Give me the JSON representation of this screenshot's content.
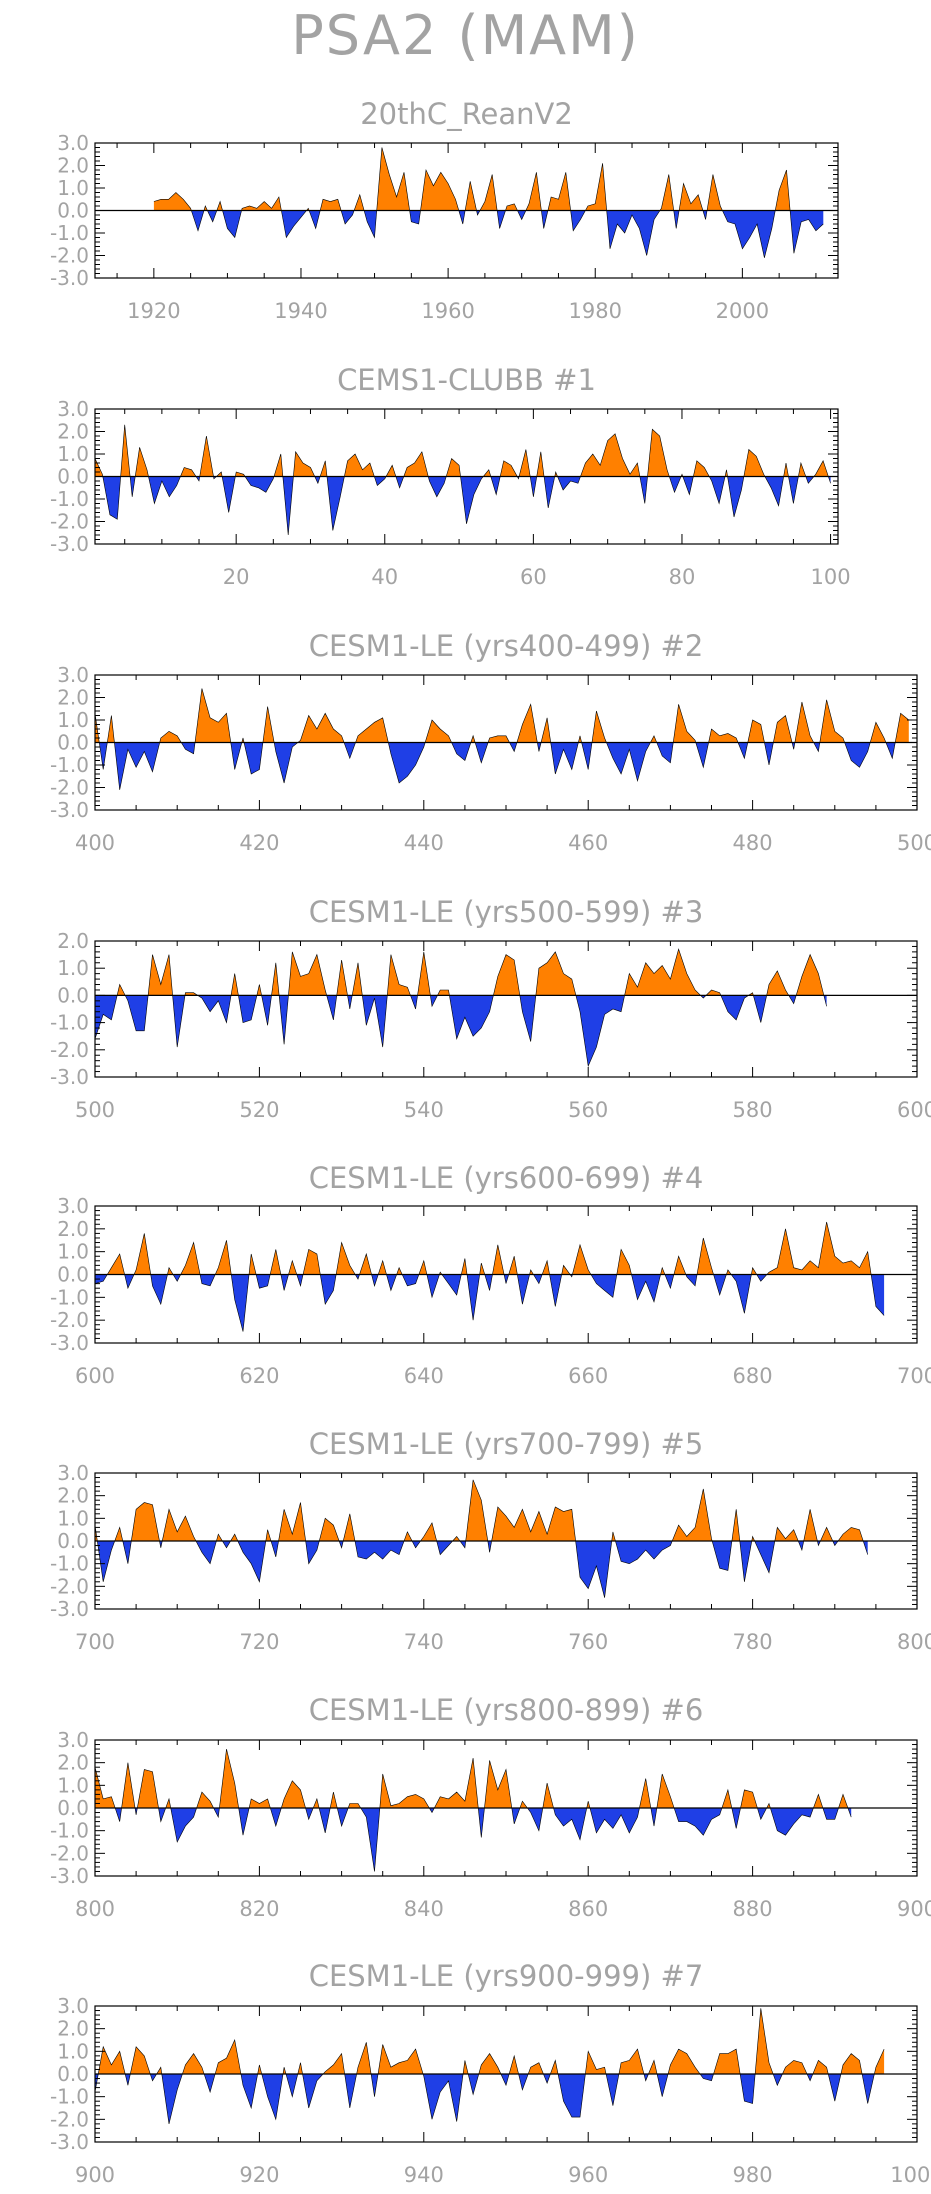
{
  "page_title": "PSA2 (MAM)",
  "colors": {
    "positive": "#ff8000",
    "negative": "#1f3fe6",
    "text": "#a3a3a3",
    "frame": "#000000"
  },
  "chart_data": [
    {
      "type": "area",
      "title": "20thC_ReanV2",
      "x_range": [
        1920,
        2011
      ],
      "xlim": [
        1912,
        2013
      ],
      "xticks": [
        1920,
        1940,
        1960,
        1980,
        2000
      ],
      "ylim": [
        -3.0,
        3.0
      ],
      "yticks": [
        "3.0",
        "2.0",
        "1.0",
        "0.0",
        "-1.0",
        "-2.0",
        "-3.0"
      ],
      "values": [
        0.4,
        0.5,
        0.5,
        0.8,
        0.5,
        0.1,
        -0.9,
        0.2,
        -0.5,
        0.4,
        -0.8,
        -1.2,
        0.1,
        0.2,
        0.1,
        0.4,
        0.1,
        0.6,
        -1.2,
        -0.7,
        -0.3,
        0.1,
        -0.8,
        0.5,
        0.4,
        0.5,
        -0.6,
        -0.2,
        0.7,
        -0.5,
        -1.2,
        2.8,
        1.6,
        0.6,
        1.7,
        -0.5,
        -0.6,
        1.8,
        1.1,
        1.7,
        1.2,
        0.5,
        -0.6,
        1.3,
        -0.2,
        0.4,
        1.6,
        -0.8,
        0.2,
        0.3,
        -0.4,
        0.3,
        1.7,
        -0.8,
        0.6,
        0.5,
        1.7,
        -0.9,
        -0.4,
        0.2,
        0.3,
        2.1,
        -1.7,
        -0.6,
        -1.0,
        -0.2,
        -0.8,
        -2.0,
        -0.4,
        0.1,
        1.6,
        -0.8,
        1.2,
        0.3,
        0.7,
        -0.4,
        1.6,
        0.2,
        -0.5,
        -0.6,
        -1.7,
        -1.2,
        -0.6,
        -2.1,
        -0.8,
        0.9,
        1.8,
        -1.9,
        -0.5,
        -0.4,
        -0.9,
        -0.6
      ]
    },
    {
      "type": "area",
      "title": "CEMS1-CLUBB        #1",
      "x_range": [
        1,
        100
      ],
      "xlim": [
        1,
        101
      ],
      "xticks": [
        20,
        40,
        60,
        80,
        100
      ],
      "ylim": [
        -3.0,
        3.0
      ],
      "yticks": [
        "3.0",
        "2.0",
        "1.0",
        "0.0",
        "-1.0",
        "-2.0",
        "-3.0"
      ],
      "values": [
        0.8,
        0.1,
        -1.7,
        -1.9,
        2.3,
        -0.9,
        1.3,
        0.3,
        -1.2,
        -0.2,
        -0.9,
        -0.4,
        0.4,
        0.3,
        -0.2,
        1.8,
        -0.1,
        0.2,
        -1.6,
        0.2,
        0.1,
        -0.4,
        -0.5,
        -0.7,
        -0.1,
        1.0,
        -2.6,
        1.1,
        0.6,
        0.4,
        -0.3,
        0.7,
        -2.4,
        -0.9,
        0.7,
        1.0,
        0.3,
        0.6,
        -0.4,
        -0.1,
        0.5,
        -0.5,
        0.4,
        0.6,
        1.1,
        -0.2,
        -0.9,
        -0.3,
        0.8,
        0.5,
        -2.1,
        -0.8,
        -0.1,
        0.3,
        -0.8,
        0.7,
        0.5,
        -0.1,
        1.2,
        -0.9,
        1.1,
        -1.4,
        0.2,
        -0.6,
        -0.2,
        -0.3,
        0.6,
        1.0,
        0.5,
        1.6,
        1.9,
        0.8,
        0.1,
        0.6,
        -1.2,
        2.1,
        1.8,
        0.3,
        -0.7,
        0.1,
        -0.8,
        0.7,
        0.4,
        -0.2,
        -1.2,
        0.3,
        -1.8,
        -0.6,
        1.2,
        0.9,
        0.1,
        -0.5,
        -1.3,
        0.6,
        -1.2,
        0.6,
        -0.3,
        0.1,
        0.7,
        -0.3
      ]
    },
    {
      "type": "area",
      "title": "CESM1-LE (yrs400-499) #2",
      "x_range": [
        400,
        499
      ],
      "xlim": [
        400,
        500
      ],
      "xticks": [
        400,
        420,
        440,
        460,
        480,
        500
      ],
      "ylim": [
        -3.0,
        3.0
      ],
      "yticks": [
        "3.0",
        "2.0",
        "1.0",
        "0.0",
        "-1.0",
        "-2.0",
        "-3.0"
      ],
      "values": [
        1.3,
        -1.2,
        1.2,
        -2.1,
        -0.3,
        -1.1,
        -0.4,
        -1.3,
        0.2,
        0.5,
        0.3,
        -0.3,
        -0.5,
        2.4,
        1.1,
        0.9,
        1.3,
        -1.2,
        0.2,
        -1.4,
        -1.2,
        1.6,
        -0.4,
        -1.8,
        -0.2,
        0.1,
        1.2,
        0.6,
        1.3,
        0.6,
        0.3,
        -0.7,
        0.3,
        0.6,
        0.9,
        1.1,
        -0.5,
        -1.8,
        -1.5,
        -1.0,
        -0.2,
        1.0,
        0.6,
        0.3,
        -0.5,
        -0.8,
        0.3,
        -0.9,
        0.2,
        0.3,
        0.3,
        -0.4,
        0.8,
        1.7,
        -0.4,
        1.1,
        -1.4,
        -0.3,
        -1.2,
        0.3,
        -1.2,
        1.4,
        0.2,
        -0.7,
        -1.4,
        -0.3,
        -1.7,
        -0.4,
        0.3,
        -0.6,
        -0.9,
        1.7,
        0.5,
        0.1,
        -1.1,
        0.6,
        0.3,
        0.4,
        0.2,
        -0.7,
        1.0,
        0.8,
        -1.0,
        0.9,
        1.2,
        -0.3,
        1.8,
        0.3,
        -0.4,
        1.9,
        0.5,
        0.2,
        -0.8,
        -1.1,
        -0.4,
        0.9,
        0.2,
        -0.7,
        1.3,
        1.0
      ]
    },
    {
      "type": "area",
      "title": "CESM1-LE (yrs500-599) #3",
      "x_range": [
        500,
        599
      ],
      "xlim": [
        500,
        600
      ],
      "xticks": [
        500,
        520,
        540,
        560,
        580,
        600
      ],
      "ylim": [
        -3.0,
        2.0
      ],
      "yticks": [
        "2.0",
        "1.0",
        "0.0",
        "-1.0",
        "-2.0",
        "-3.0"
      ],
      "values": [
        -1.6,
        -0.7,
        -0.9,
        0.4,
        -0.2,
        -1.3,
        -1.3,
        1.5,
        0.4,
        1.5,
        -1.9,
        0.1,
        0.1,
        -0.1,
        -0.6,
        -0.2,
        -1.0,
        0.8,
        -1.0,
        -0.9,
        0.4,
        -1.1,
        1.2,
        -1.8,
        1.6,
        0.7,
        0.8,
        1.5,
        0.2,
        -0.9,
        1.3,
        -0.5,
        1.2,
        -1.1,
        -0.1,
        -1.9,
        1.5,
        0.4,
        0.3,
        -0.5,
        1.6,
        -0.4,
        0.2,
        0.2,
        -1.6,
        -0.8,
        -1.5,
        -1.2,
        -0.6,
        0.7,
        1.5,
        1.3,
        -0.6,
        -1.7,
        1.0,
        1.2,
        1.6,
        0.8,
        0.6,
        -0.6,
        -2.6,
        -1.9,
        -0.7,
        -0.5,
        -0.6,
        0.8,
        0.3,
        1.2,
        0.8,
        1.1,
        0.6,
        1.7,
        0.8,
        0.2,
        -0.1,
        0.2,
        0.1,
        -0.6,
        -0.9,
        -0.1,
        0.1,
        -1.0,
        0.4,
        0.9,
        0.2,
        -0.3,
        0.7,
        1.5,
        0.8,
        -0.4
      ]
    },
    {
      "type": "area",
      "title": "CESM1-LE (yrs600-699) #4",
      "x_range": [
        600,
        699
      ],
      "xlim": [
        600,
        700
      ],
      "xticks": [
        600,
        620,
        640,
        660,
        680,
        700
      ],
      "ylim": [
        -3.0,
        3.0
      ],
      "yticks": [
        "3.0",
        "2.0",
        "1.0",
        "0.0",
        "-1.0",
        "-2.0",
        "-3.0"
      ],
      "values": [
        -0.4,
        -0.3,
        0.3,
        0.9,
        -0.6,
        0.2,
        1.8,
        -0.5,
        -1.3,
        0.3,
        -0.3,
        0.4,
        1.4,
        -0.4,
        -0.5,
        0.3,
        1.5,
        -1.1,
        -2.5,
        0.9,
        -0.6,
        -0.5,
        1.1,
        -0.7,
        0.6,
        -0.5,
        1.1,
        0.9,
        -1.3,
        -0.7,
        1.4,
        0.4,
        -0.2,
        0.9,
        -0.5,
        0.6,
        -0.7,
        0.3,
        -0.5,
        -0.4,
        0.6,
        -1.0,
        0.1,
        -0.4,
        -0.9,
        0.7,
        -2.0,
        0.5,
        -0.7,
        1.3,
        -0.4,
        0.8,
        -1.3,
        0.2,
        -0.4,
        0.6,
        -1.4,
        0.4,
        -0.1,
        1.3,
        0.2,
        -0.4,
        -0.7,
        -1.0,
        1.1,
        0.4,
        -1.1,
        -0.3,
        -1.2,
        0.3,
        -0.6,
        0.8,
        -0.1,
        -0.5,
        1.6,
        0.3,
        -0.9,
        0.2,
        -0.3,
        -1.7,
        0.3,
        -0.3,
        0.1,
        0.3,
        2.0,
        0.3,
        0.2,
        0.6,
        0.3,
        2.3,
        0.8,
        0.5,
        0.6,
        0.3,
        1.0,
        -1.4,
        -1.8
      ]
    },
    {
      "type": "area",
      "title": "CESM1-LE (yrs700-799) #5",
      "x_range": [
        700,
        799
      ],
      "xlim": [
        700,
        800
      ],
      "xticks": [
        700,
        720,
        740,
        760,
        780,
        800
      ],
      "ylim": [
        -3.0,
        3.0
      ],
      "yticks": [
        "3.0",
        "2.0",
        "1.0",
        "0.0",
        "-1.0",
        "-2.0",
        "-3.0"
      ],
      "values": [
        0.7,
        -1.8,
        -0.4,
        0.6,
        -1.0,
        1.4,
        1.7,
        1.6,
        -0.3,
        1.4,
        0.4,
        1.1,
        0.2,
        -0.5,
        -1.0,
        0.3,
        -0.3,
        0.3,
        -0.5,
        -1.0,
        -1.8,
        0.5,
        -0.7,
        1.4,
        0.3,
        1.7,
        -1.0,
        -0.4,
        1.0,
        0.7,
        -0.3,
        1.2,
        -0.7,
        -0.8,
        -0.5,
        -0.8,
        -0.4,
        -0.6,
        0.4,
        -0.3,
        0.2,
        0.8,
        -0.6,
        -0.2,
        0.2,
        -0.3,
        2.7,
        1.8,
        -0.5,
        1.5,
        1.1,
        0.6,
        1.4,
        0.4,
        1.3,
        0.3,
        1.5,
        1.3,
        1.4,
        -1.6,
        -2.1,
        -1.1,
        -2.5,
        0.4,
        -0.9,
        -1.0,
        -0.8,
        -0.4,
        -0.8,
        -0.4,
        -0.2,
        0.7,
        0.2,
        0.6,
        2.3,
        0.1,
        -1.2,
        -1.3,
        1.4,
        -1.8,
        0.2,
        -0.6,
        -1.4,
        0.6,
        0.1,
        0.5,
        -0.4,
        1.4,
        -0.2,
        0.6,
        -0.2,
        0.3,
        0.6,
        0.5,
        -0.6
      ]
    },
    {
      "type": "area",
      "title": "CESM1-LE (yrs800-899) #6",
      "x_range": [
        800,
        899
      ],
      "xlim": [
        800,
        900
      ],
      "xticks": [
        800,
        820,
        840,
        860,
        880,
        900
      ],
      "ylim": [
        -3.0,
        3.0
      ],
      "yticks": [
        "3.0",
        "2.0",
        "1.0",
        "0.0",
        "-1.0",
        "-2.0",
        "-3.0"
      ],
      "values": [
        1.8,
        0.4,
        0.5,
        -0.6,
        2.0,
        -0.3,
        1.7,
        1.6,
        -0.6,
        0.4,
        -1.5,
        -0.8,
        -0.4,
        0.7,
        0.3,
        -0.4,
        2.6,
        1.1,
        -1.2,
        0.4,
        0.2,
        0.4,
        -0.8,
        0.4,
        1.2,
        0.8,
        -0.5,
        0.4,
        -1.1,
        0.7,
        -0.8,
        0.2,
        0.2,
        -0.4,
        -2.8,
        1.5,
        0.1,
        0.2,
        0.5,
        0.6,
        0.4,
        -0.2,
        0.5,
        0.4,
        0.7,
        0.3,
        2.2,
        -1.3,
        2.1,
        0.8,
        1.7,
        -0.7,
        0.3,
        -0.2,
        -1.0,
        1.1,
        -0.3,
        -0.8,
        -0.5,
        -1.4,
        0.3,
        -1.1,
        -0.5,
        -0.9,
        -0.3,
        -1.1,
        -0.4,
        1.3,
        -0.8,
        1.5,
        0.5,
        -0.6,
        -0.6,
        -0.8,
        -1.2,
        -0.5,
        -0.3,
        0.8,
        -0.9,
        0.8,
        0.7,
        -0.5,
        0.2,
        -1.0,
        -1.2,
        -0.7,
        -0.3,
        -0.4,
        0.6,
        -0.5,
        -0.5,
        0.6,
        -0.4
      ]
    },
    {
      "type": "area",
      "title": "CESM1-LE (yrs900-999) #7",
      "x_range": [
        900,
        999
      ],
      "xlim": [
        900,
        1000
      ],
      "xticks": [
        900,
        920,
        940,
        960,
        980,
        1000
      ],
      "ylim": [
        -3.0,
        3.0
      ],
      "yticks": [
        "3.0",
        "2.0",
        "1.0",
        "0.0",
        "-1.0",
        "-2.0",
        "-3.0"
      ],
      "values": [
        -0.8,
        1.2,
        0.4,
        1.0,
        -0.5,
        1.2,
        0.8,
        -0.3,
        0.3,
        -2.2,
        -0.7,
        0.4,
        0.9,
        0.3,
        -0.8,
        0.5,
        0.7,
        1.5,
        -0.5,
        -1.5,
        0.4,
        -1.0,
        -2.0,
        0.3,
        -1.0,
        0.5,
        -1.5,
        -0.3,
        0.1,
        0.4,
        0.9,
        -1.5,
        0.3,
        1.4,
        -1.0,
        1.3,
        0.3,
        0.5,
        0.6,
        1.1,
        -0.1,
        -2.0,
        -0.8,
        -0.3,
        -2.1,
        0.6,
        -0.9,
        0.4,
        0.9,
        0.3,
        -0.5,
        0.8,
        -0.7,
        0.3,
        0.5,
        -0.4,
        0.6,
        -1.2,
        -1.9,
        -1.9,
        1.0,
        0.2,
        0.3,
        -1.4,
        0.5,
        0.6,
        1.1,
        -0.3,
        0.6,
        -1.0,
        0.4,
        1.1,
        0.9,
        0.3,
        -0.2,
        -0.3,
        0.9,
        0.9,
        1.1,
        -1.2,
        -1.3,
        2.9,
        0.5,
        -0.5,
        0.3,
        0.6,
        0.5,
        -0.3,
        0.6,
        0.3,
        -1.2,
        0.4,
        0.9,
        0.6,
        -1.3,
        0.3,
        1.1
      ]
    }
  ]
}
